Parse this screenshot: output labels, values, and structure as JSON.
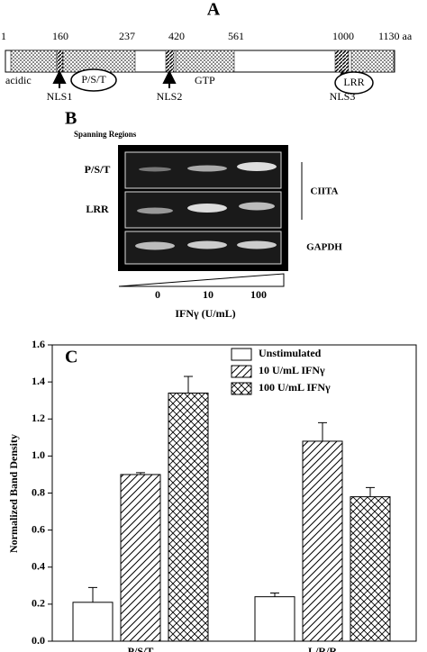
{
  "panel_a": {
    "label": "A",
    "positions": [
      "1",
      "160",
      "237",
      "420",
      "561",
      "1000",
      "1130 aa"
    ],
    "domains": [
      "acidic",
      "P/S/T",
      "NLS1",
      "NLS2",
      "GTP",
      "NLS3",
      "LRR"
    ]
  },
  "panel_b": {
    "label": "B",
    "header": "Spanning Regions",
    "rows": [
      "P/S/T",
      "LRR",
      "GAPDH"
    ],
    "bracket": "CIITA",
    "doses": [
      "0",
      "10",
      "100"
    ],
    "dose_axis": "IFNγ (U/mL)"
  },
  "chart_data": {
    "type": "bar",
    "panel": "C",
    "ylabel": "Normalized Band Density",
    "categories": [
      "P/S/T",
      "L/R/R"
    ],
    "series": [
      {
        "name": "Unstimulated",
        "pattern": "none",
        "color": "#000000",
        "values": [
          0.21,
          0.24
        ],
        "errors": [
          0.08,
          0.02
        ]
      },
      {
        "name": "10 U/mL IFNγ",
        "pattern": "diagonal",
        "color": "#000000",
        "values": [
          0.9,
          1.08
        ],
        "errors": [
          0.01,
          0.1
        ]
      },
      {
        "name": "100 U/mL IFNγ",
        "pattern": "cross",
        "color": "#000000",
        "values": [
          1.34,
          0.78
        ],
        "errors": [
          0.09,
          0.05
        ]
      }
    ],
    "ylim": [
      0,
      1.6
    ],
    "yticks": [
      {
        "value": 0,
        "label": "0.0"
      },
      0.2,
      0.4,
      0.6,
      0.8,
      {
        "value": 1,
        "label": "1.0"
      },
      1.2,
      1.4,
      1.6
    ],
    "legend": "top-right"
  }
}
